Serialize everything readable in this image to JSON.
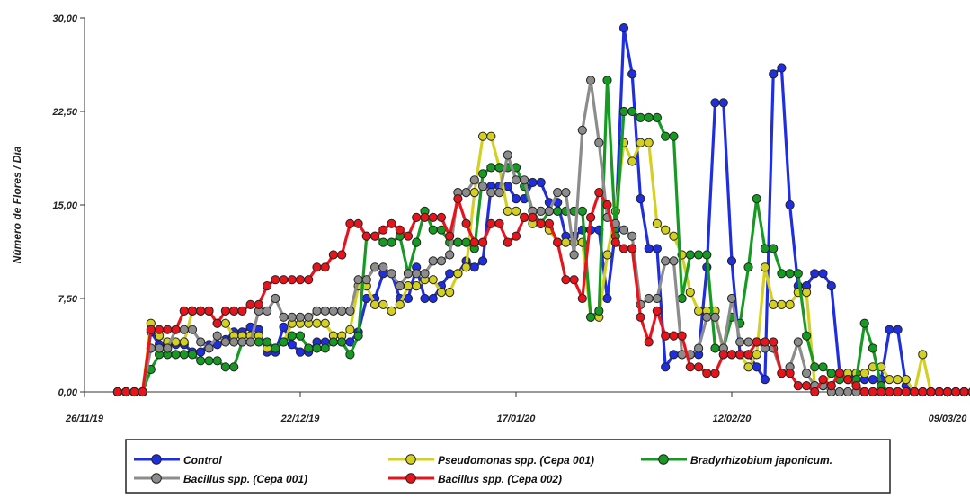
{
  "chart_data": {
    "type": "line",
    "ylabel": "Número de Flores / Dia",
    "ylim": [
      0,
      30
    ],
    "xlim": [
      "2019-11-26",
      "2020-03-09"
    ],
    "y_ticks": [
      0,
      7.5,
      15,
      22.5,
      30
    ],
    "y_tick_labels": [
      "0,00",
      "7,50",
      "15,00",
      "22,50",
      "30,00"
    ],
    "x_ticks": [
      "2019-11-26",
      "2019-12-22",
      "2020-01-17",
      "2020-02-12",
      "2020-03-09"
    ],
    "x_tick_labels": [
      "26/11/19",
      "22/12/19",
      "17/01/20",
      "12/02/20",
      "09/03/20"
    ],
    "x_start": "2019-11-30",
    "grid": false,
    "legend_position": "bottom",
    "series": [
      {
        "name": "Control",
        "color": "#1f2fe0",
        "values": [
          0,
          0,
          0,
          0,
          4.8,
          3.8,
          3.8,
          3.8,
          3.8,
          3.2,
          3.2,
          3.8,
          3.8,
          4.2,
          4.8,
          4.8,
          5.2,
          5.0,
          3.2,
          3.2,
          5.2,
          3.8,
          3.2,
          3.2,
          4.0,
          4.0,
          4.0,
          4.0,
          4.0,
          4.8,
          7.5,
          7.5,
          9.5,
          9.5,
          7.5,
          7.5,
          10.0,
          7.5,
          7.5,
          8.5,
          9.5,
          9.5,
          10.5,
          10.0,
          10.5,
          16.5,
          16.5,
          16.5,
          15.5,
          15.5,
          16.8,
          16.8,
          15.2,
          15.2,
          12.5,
          12.5,
          13.0,
          13.0,
          13.0,
          7.5,
          13.0,
          29.2,
          25.5,
          15.5,
          11.5,
          11.5,
          2.0,
          3.0,
          3.0,
          3.0,
          3.0,
          10.0,
          23.2,
          23.2,
          10.5,
          3.0,
          3.0,
          2.0,
          1.0,
          25.5,
          26.0,
          15.0,
          8.5,
          8.5,
          9.5,
          9.5,
          8.5,
          1.5,
          1.5,
          1.0,
          1.0,
          1.0,
          1.0,
          5.0,
          5.0,
          0.5,
          0.0,
          0.0,
          0.0,
          0.0,
          0.0,
          0.0,
          0.0,
          0.0,
          0.0,
          0.0,
          0.0,
          0.0,
          0.0,
          0.0,
          0.0,
          0.0,
          0.0,
          0.0,
          0.0,
          0.0,
          0.0,
          0.0,
          0.0,
          0.0,
          0.0,
          0.0
        ]
      },
      {
        "name": "Pseudomonas spp. (Cepa 001)",
        "color": "#d4d021",
        "values": [
          0,
          0,
          0,
          0,
          5.5,
          4.5,
          4.0,
          4.0,
          4.0,
          6.5,
          6.5,
          6.5,
          5.5,
          5.5,
          4.5,
          4.5,
          4.5,
          4.5,
          3.5,
          3.5,
          4.0,
          5.5,
          5.5,
          5.5,
          5.5,
          5.5,
          4.5,
          4.5,
          5.0,
          8.5,
          8.5,
          7.0,
          7.0,
          6.5,
          7.0,
          8.5,
          8.5,
          9.0,
          9.0,
          8.0,
          8.0,
          9.5,
          10.0,
          16.0,
          20.5,
          20.5,
          18.0,
          14.5,
          14.5,
          14.0,
          13.5,
          13.5,
          13.0,
          12.0,
          12.0,
          12.0,
          12.0,
          6.0,
          6.0,
          11.0,
          14.5,
          20.0,
          18.5,
          20.0,
          20.0,
          13.5,
          13.0,
          12.5,
          11.0,
          8.0,
          6.5,
          6.5,
          6.5,
          3.0,
          3.0,
          3.0,
          2.0,
          3.0,
          10.0,
          7.0,
          7.0,
          7.0,
          8.0,
          8.0,
          0.5,
          0.5,
          1.5,
          1.5,
          1.5,
          1.5,
          1.5,
          2.0,
          2.0,
          1.0,
          1.0,
          1.0,
          0.0,
          3.0,
          0.0,
          0.0,
          0.0,
          0.0,
          0.0,
          0.0,
          0.0,
          0.0,
          0.0,
          0.0,
          0.0,
          0.0,
          0.0,
          0.0,
          0.0,
          0.0,
          0.0,
          0.0,
          0.0,
          0.0,
          0.0,
          0.0,
          0.0,
          0.0,
          0.0
        ]
      },
      {
        "name": "Bradyrhizobium japonicum.",
        "color": "#179a24",
        "values": [
          0,
          0,
          0,
          0,
          1.8,
          3.0,
          3.0,
          3.0,
          3.0,
          3.0,
          2.5,
          2.5,
          2.5,
          2.0,
          2.0,
          4.0,
          4.0,
          4.0,
          4.0,
          3.5,
          4.0,
          4.5,
          4.5,
          3.5,
          3.5,
          3.5,
          4.0,
          4.0,
          3.0,
          4.5,
          12.5,
          12.5,
          12.0,
          12.0,
          12.5,
          9.5,
          12.0,
          14.5,
          13.0,
          13.0,
          12.0,
          12.0,
          12.0,
          11.5,
          17.5,
          18.0,
          18.0,
          18.0,
          18.0,
          16.5,
          14.5,
          13.5,
          14.5,
          14.5,
          14.5,
          14.5,
          14.5,
          6.0,
          6.5,
          25.0,
          12.5,
          22.5,
          22.5,
          22.0,
          22.0,
          22.0,
          20.5,
          20.5,
          7.5,
          11.0,
          11.0,
          11.0,
          3.5,
          3.5,
          6.0,
          5.5,
          10.0,
          15.5,
          11.5,
          11.5,
          9.5,
          9.5,
          9.5,
          4.5,
          2.0,
          2.0,
          1.5,
          1.0,
          1.0,
          1.0,
          5.5,
          3.5,
          0.5,
          0.0,
          0.0,
          0.0,
          0.0,
          0.0,
          0.0,
          0.0,
          0.0,
          0.0,
          0.0,
          0.0,
          0.0,
          0.0,
          0.0,
          0.0,
          0.0,
          0.0,
          0.0,
          0.0,
          0.0,
          0.0,
          0.0,
          0.0,
          0.0,
          0.0,
          0.0,
          0.0
        ]
      },
      {
        "name": "Bacillus spp. (Cepa 001)",
        "color": "#8c8c8c",
        "values": [
          0,
          0,
          0,
          0,
          3.5,
          3.5,
          3.5,
          5.0,
          5.0,
          5.0,
          4.0,
          3.5,
          4.5,
          4.0,
          4.0,
          4.0,
          4.0,
          6.5,
          6.5,
          7.5,
          6.0,
          6.0,
          6.0,
          6.0,
          6.5,
          6.5,
          6.5,
          6.5,
          6.5,
          9.0,
          9.0,
          10.0,
          10.0,
          9.5,
          8.5,
          9.5,
          9.5,
          9.5,
          10.5,
          10.5,
          11.0,
          16.0,
          16.0,
          17.0,
          16.5,
          16.0,
          16.0,
          19.0,
          17.0,
          17.0,
          14.5,
          14.5,
          14.5,
          16.0,
          16.0,
          11.0,
          21.0,
          25.0,
          20.0,
          14.0,
          13.5,
          13.0,
          12.5,
          7.0,
          7.5,
          7.5,
          10.5,
          10.5,
          3.0,
          3.0,
          3.5,
          6.0,
          6.0,
          3.5,
          7.5,
          4.0,
          4.0,
          4.0,
          3.5,
          3.5,
          1.5,
          2.0,
          4.0,
          1.5,
          0.5,
          0.5,
          0.0,
          0.0,
          0.0,
          0.0,
          0.0,
          0.0,
          0.0,
          0.0,
          0.0,
          0.0,
          0.0,
          0.0,
          0.0,
          0.0,
          0.0,
          0.0,
          0.0,
          0.0,
          0.0,
          0.0,
          0.0,
          0.0,
          0.0,
          0.0,
          0.0,
          0.0,
          0.0,
          0.0,
          0.0,
          0.0,
          0.0,
          0.0,
          0.0,
          0.0,
          0.0,
          0.0
        ]
      },
      {
        "name": "Bacillus spp. (Cepa 002)",
        "color": "#e8141c",
        "values": [
          0,
          0,
          0,
          0,
          5.0,
          5.0,
          5.0,
          5.0,
          6.5,
          6.5,
          6.5,
          6.5,
          5.5,
          6.5,
          6.5,
          6.5,
          7.0,
          7.0,
          8.5,
          9.0,
          9.0,
          9.0,
          9.0,
          9.0,
          10.0,
          10.0,
          11.0,
          11.0,
          13.5,
          13.5,
          12.5,
          12.5,
          13.0,
          13.5,
          13.0,
          12.5,
          14.0,
          14.0,
          14.0,
          14.0,
          12.5,
          15.5,
          13.5,
          12.0,
          12.0,
          13.5,
          13.5,
          12.0,
          12.5,
          14.0,
          14.0,
          13.5,
          13.5,
          12.0,
          9.0,
          9.0,
          7.5,
          14.0,
          16.0,
          15.0,
          12.0,
          11.5,
          11.5,
          6.0,
          4.0,
          6.5,
          4.5,
          4.5,
          4.5,
          2.0,
          2.0,
          1.5,
          1.5,
          3.0,
          3.0,
          3.0,
          3.0,
          4.0,
          4.0,
          4.0,
          1.5,
          1.5,
          0.5,
          0.5,
          0.0,
          1.0,
          0.5,
          1.5,
          1.0,
          0.5,
          0.0,
          0.0,
          0.0,
          0.0,
          0.0,
          0.0,
          0.0,
          0.0,
          0.0,
          0.0,
          0.0,
          0.0,
          0.0,
          0.0,
          0.0,
          0.0,
          0.0,
          0.0,
          0.0,
          0.0,
          0.0,
          0.0,
          0.0,
          0.0,
          0.0,
          0.0,
          0.0,
          0.0,
          0.0,
          0.0,
          0.0,
          0.0,
          0.0,
          0.0,
          0.0
        ]
      }
    ]
  }
}
